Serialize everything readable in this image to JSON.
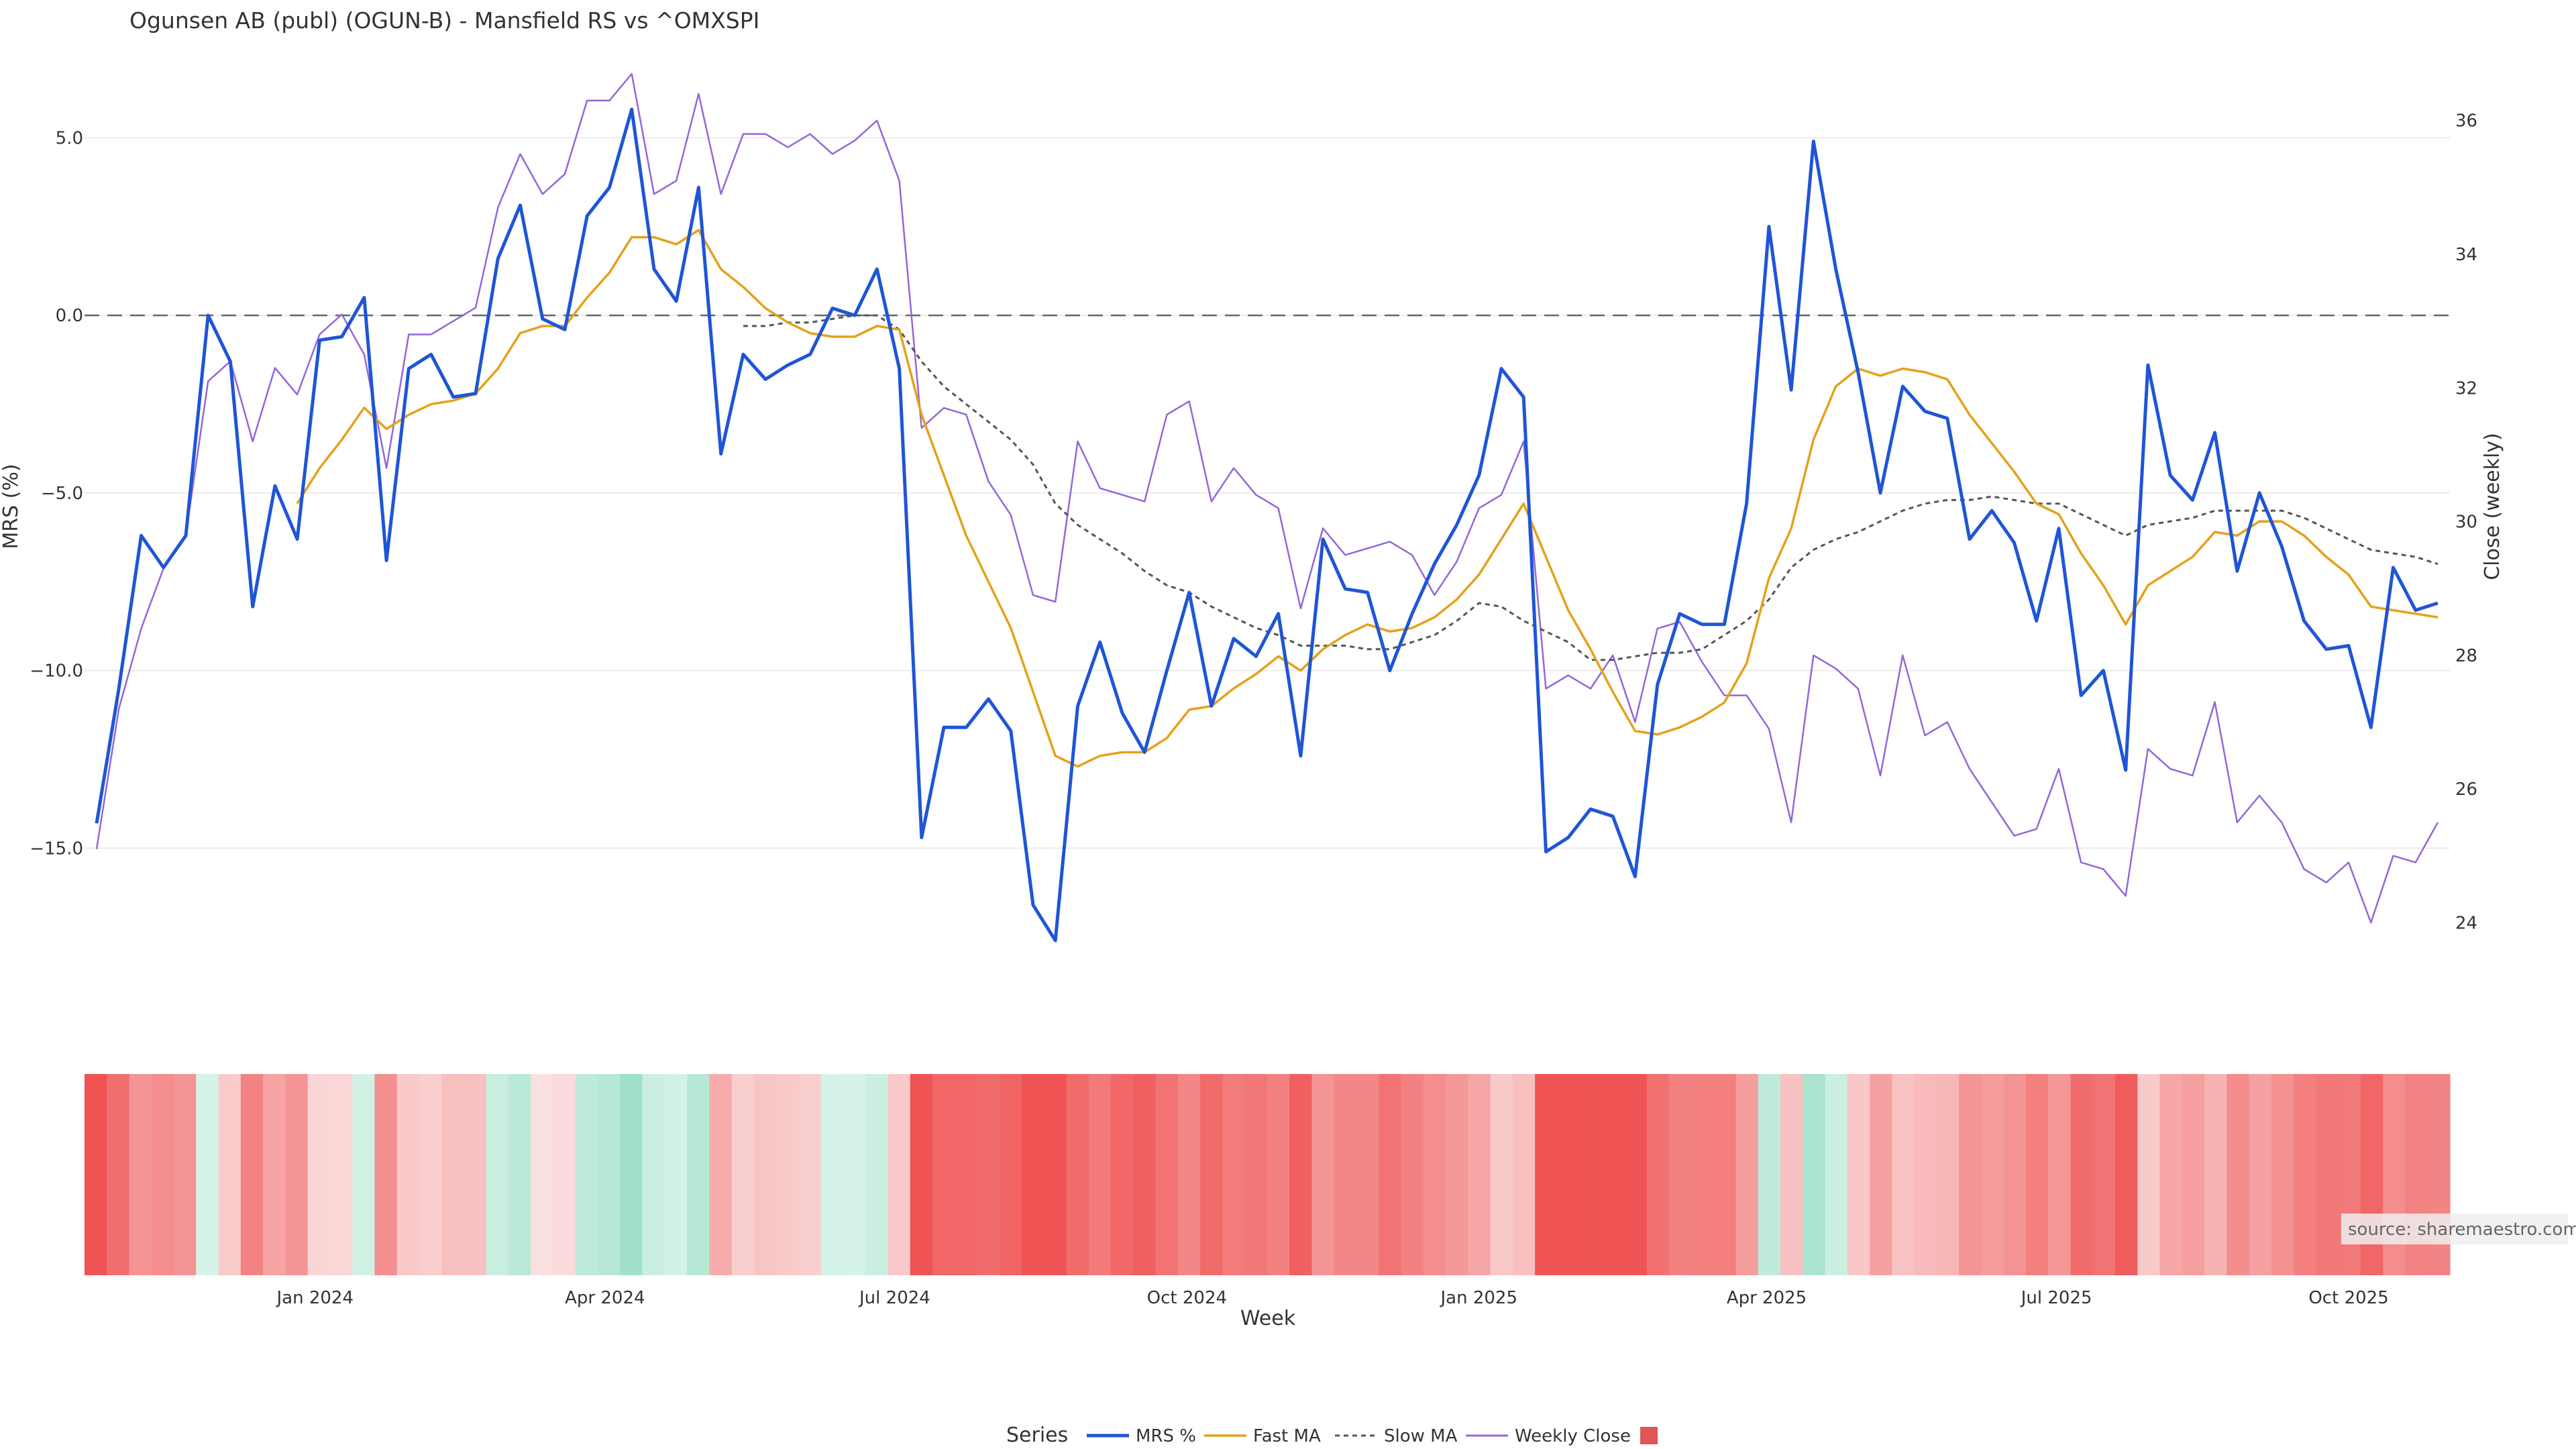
{
  "chart_data": {
    "type": "line",
    "title": "Ogunsen AB (publ) (OGUN-B) - Mansfield RS vs ^OMXSPI",
    "xlabel": "Week",
    "y_left_label": "MRS (%)",
    "y_right_label": "Close (weekly)",
    "source_label": "source: sharemaestro.com",
    "legend_title": "Series",
    "y_left_ticks": [
      "5.0",
      "0.0",
      "−5.0",
      "−10.0",
      "−15.0"
    ],
    "y_left_tick_values": [
      5,
      0,
      -5,
      -10,
      -15
    ],
    "y_left_range": [
      -18.6,
      6.8
    ],
    "y_right_ticks": [
      "36",
      "34",
      "32",
      "30",
      "28",
      "26",
      "24"
    ],
    "y_right_tick_values": [
      36,
      34,
      32,
      30,
      28,
      26,
      24
    ],
    "y_right_range": [
      23.2,
      36.7
    ],
    "x_ticks": [
      "Jan 2024",
      "Apr 2024",
      "Jul 2024",
      "Oct 2024",
      "Jan 2025",
      "Apr 2025",
      "Jul 2025",
      "Oct 2025"
    ],
    "x_tick_weeks": [
      9.8,
      22.8,
      35.8,
      48.9,
      62.0,
      74.9,
      87.9,
      101.0
    ],
    "week_count": 106,
    "zero_line": 0,
    "colors": {
      "mrs": "#1f55d6",
      "fast_ma": "#e5a11a",
      "slow_ma": "#555555",
      "weekly_close": "#9467d8",
      "zero_line": "#666666",
      "heat_legend": "#e05555"
    },
    "series": [
      {
        "name": "MRS %",
        "key": "mrs",
        "axis": "left",
        "start": 0,
        "values": [
          -14.3,
          -10.5,
          -6.2,
          -7.1,
          -6.2,
          0.0,
          -1.3,
          -8.2,
          -4.8,
          -6.3,
          -0.7,
          -0.6,
          0.5,
          -6.9,
          -1.5,
          -1.1,
          -2.3,
          -2.2,
          1.6,
          3.1,
          -0.1,
          -0.4,
          2.8,
          3.6,
          5.8,
          1.3,
          0.4,
          3.6,
          -3.9,
          -1.1,
          -1.8,
          -1.4,
          -1.1,
          0.2,
          0.0,
          1.3,
          -1.5,
          -14.7,
          -11.6,
          -11.6,
          -10.8,
          -11.7,
          -16.6,
          -17.6,
          -11.0,
          -9.2,
          -11.2,
          -12.3,
          -10.0,
          -7.8,
          -11.0,
          -9.1,
          -9.6,
          -8.4,
          -12.4,
          -6.3,
          -7.7,
          -7.8,
          -10.0,
          -8.4,
          -7.0,
          -5.9,
          -4.5,
          -1.5,
          -2.3,
          -15.1,
          -14.7,
          -13.9,
          -14.1,
          -15.8,
          -10.4,
          -8.4,
          -8.7,
          -8.7,
          -5.3,
          2.5,
          -2.1,
          4.9,
          1.3,
          -1.6,
          -5.0,
          -2.0,
          -2.7,
          -2.9,
          -6.3,
          -5.5,
          -6.4,
          -8.6,
          -6.0,
          -10.7,
          -10.0,
          -12.8,
          -1.4,
          -4.5,
          -5.2,
          -3.3,
          -7.2,
          -5.0,
          -6.5,
          -8.6,
          -9.4,
          -9.3,
          -11.6,
          -7.1,
          -8.3,
          -8.1
        ]
      },
      {
        "name": "Fast MA",
        "key": "fast_ma",
        "axis": "left",
        "start": 9,
        "values": [
          -5.3,
          -4.3,
          -3.5,
          -2.6,
          -3.2,
          -2.8,
          -2.5,
          -2.4,
          -2.2,
          -1.5,
          -0.5,
          -0.3,
          -0.3,
          0.5,
          1.2,
          2.2,
          2.2,
          2.0,
          2.4,
          1.3,
          0.8,
          0.2,
          -0.2,
          -0.5,
          -0.6,
          -0.6,
          -0.3,
          -0.4,
          -2.8,
          -4.5,
          -6.2,
          -7.5,
          -8.8,
          -10.6,
          -12.4,
          -12.7,
          -12.4,
          -12.3,
          -12.3,
          -11.9,
          -11.1,
          -11.0,
          -10.5,
          -10.1,
          -9.6,
          -10.0,
          -9.4,
          -9.0,
          -8.7,
          -8.9,
          -8.8,
          -8.5,
          -8.0,
          -7.3,
          -6.3,
          -5.3,
          -6.8,
          -8.3,
          -9.4,
          -10.6,
          -11.7,
          -11.8,
          -11.6,
          -11.3,
          -10.9,
          -9.8,
          -7.4,
          -6.0,
          -3.5,
          -2.0,
          -1.5,
          -1.7,
          -1.5,
          -1.6,
          -1.8,
          -2.8,
          -3.6,
          -4.4,
          -5.3,
          -5.6,
          -6.7,
          -7.6,
          -8.7,
          -7.6,
          -7.2,
          -6.8,
          -6.1,
          -6.2,
          -5.8,
          -5.8,
          -6.2,
          -6.8,
          -7.3,
          -8.2,
          -8.3,
          -8.4,
          -8.5
        ]
      },
      {
        "name": "Slow MA",
        "key": "slow_ma",
        "axis": "left",
        "start": 29,
        "values": [
          -0.3,
          -0.3,
          -0.2,
          -0.2,
          -0.1,
          0.0,
          0.0,
          -0.4,
          -1.3,
          -2.0,
          -2.5,
          -3.0,
          -3.5,
          -4.2,
          -5.3,
          -5.9,
          -6.3,
          -6.7,
          -7.2,
          -7.6,
          -7.8,
          -8.2,
          -8.5,
          -8.8,
          -9.0,
          -9.3,
          -9.3,
          -9.3,
          -9.4,
          -9.4,
          -9.2,
          -9.0,
          -8.6,
          -8.1,
          -8.2,
          -8.6,
          -8.9,
          -9.2,
          -9.7,
          -9.7,
          -9.6,
          -9.5,
          -9.5,
          -9.4,
          -9.0,
          -8.6,
          -8.0,
          -7.1,
          -6.6,
          -6.3,
          -6.1,
          -5.8,
          -5.5,
          -5.3,
          -5.2,
          -5.2,
          -5.1,
          -5.2,
          -5.3,
          -5.3,
          -5.6,
          -5.9,
          -6.2,
          -5.9,
          -5.8,
          -5.7,
          -5.5,
          -5.5,
          -5.5,
          -5.5,
          -5.7,
          -6.0,
          -6.3,
          -6.6,
          -6.7,
          -6.8,
          -7.0
        ]
      },
      {
        "name": "Weekly Close",
        "key": "weekly_close",
        "axis": "right",
        "start": 0,
        "values": [
          25.1,
          27.2,
          28.4,
          29.3,
          29.8,
          32.1,
          32.4,
          31.2,
          32.3,
          31.9,
          32.8,
          33.1,
          32.5,
          30.8,
          32.8,
          32.8,
          33.0,
          33.2,
          34.7,
          35.5,
          34.9,
          35.2,
          36.3,
          36.3,
          36.7,
          34.9,
          35.1,
          36.4,
          34.9,
          35.8,
          35.8,
          35.6,
          35.8,
          35.5,
          35.7,
          36.0,
          35.1,
          31.4,
          31.7,
          31.6,
          30.6,
          30.1,
          28.9,
          28.8,
          31.2,
          30.5,
          30.4,
          30.3,
          31.6,
          31.8,
          30.3,
          30.8,
          30.4,
          30.2,
          28.7,
          29.9,
          29.5,
          29.6,
          29.7,
          29.5,
          28.9,
          29.4,
          30.2,
          30.4,
          31.2,
          27.5,
          27.7,
          27.5,
          28.0,
          27.0,
          28.4,
          28.5,
          27.9,
          27.4,
          27.4,
          26.9,
          25.5,
          28.0,
          27.8,
          27.5,
          26.2,
          28.0,
          26.8,
          27.0,
          26.3,
          25.8,
          25.3,
          25.4,
          26.3,
          24.9,
          24.8,
          24.4,
          26.6,
          26.3,
          26.2,
          27.3,
          25.5,
          25.9,
          25.5,
          24.8,
          24.6,
          24.9,
          24.0,
          25.0,
          24.9,
          25.5
        ]
      }
    ],
    "heatmap": {
      "name": "MRS state",
      "legend_label": "",
      "values": [
        -14.3,
        -10.5,
        -6.2,
        -7.1,
        -6.2,
        0.0,
        -1.3,
        -8.2,
        -4.8,
        -6.3,
        -0.7,
        -0.6,
        0.5,
        -6.9,
        -1.5,
        -1.1,
        -2.3,
        -2.2,
        1.6,
        3.1,
        -0.1,
        -0.4,
        2.8,
        3.6,
        5.8,
        1.3,
        0.4,
        3.6,
        -3.9,
        -1.1,
        -1.8,
        -1.4,
        -1.1,
        0.2,
        0.0,
        1.3,
        -1.5,
        -14.7,
        -11.6,
        -11.6,
        -10.8,
        -11.7,
        -16.6,
        -17.6,
        -11.0,
        -9.2,
        -11.2,
        -12.3,
        -10.0,
        -7.8,
        -11.0,
        -9.1,
        -9.6,
        -8.4,
        -12.4,
        -6.3,
        -7.7,
        -7.8,
        -10.0,
        -8.4,
        -7.0,
        -5.9,
        -4.5,
        -1.5,
        -2.3,
        -15.1,
        -14.7,
        -13.9,
        -14.1,
        -15.8,
        -10.4,
        -8.4,
        -8.7,
        -8.7,
        -5.3,
        2.5,
        -2.1,
        4.9,
        1.3,
        -1.6,
        -5.0,
        -2.0,
        -2.7,
        -2.9,
        -6.3,
        -5.5,
        -6.4,
        -8.6,
        -6.0,
        -10.7,
        -10.0,
        -12.8,
        -1.4,
        -4.5,
        -5.2,
        -3.3,
        -7.2,
        -5.0,
        -6.5,
        -8.6,
        -9.4,
        -9.3,
        -11.6,
        -7.1,
        -8.3,
        -8.1
      ]
    }
  }
}
